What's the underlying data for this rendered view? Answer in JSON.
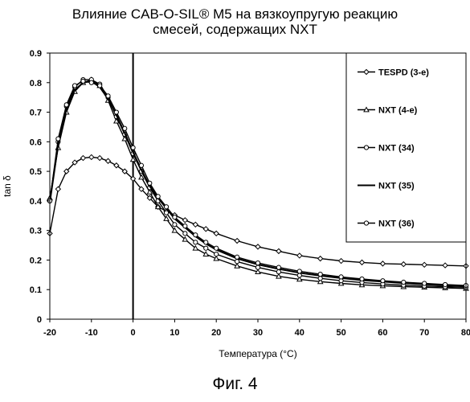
{
  "figure": {
    "title_line1": "Влияние CAB-O-SIL® M5 на вязкоупругую реакцию",
    "title_line2": "смесей, содержащих NXT",
    "caption": "Фиг. 4"
  },
  "chart_data": {
    "type": "line",
    "title": "Влияние CAB-O-SIL® M5 на вязкоупругую реакцию смесей, содержащих NXT",
    "xlabel": "Температура (°C)",
    "ylabel": "tan δ",
    "xlim": [
      -20,
      80
    ],
    "ylim": [
      0,
      0.9
    ],
    "x_ticks": [
      -20,
      -10,
      0,
      10,
      20,
      30,
      40,
      50,
      60,
      70,
      80
    ],
    "y_ticks": [
      0,
      0.1,
      0.2,
      0.3,
      0.4,
      0.5,
      0.6,
      0.7,
      0.8,
      0.9
    ],
    "x_tick_labels": [
      "-20",
      "-10",
      "0",
      "10",
      "20",
      "30",
      "40",
      "50",
      "60",
      "70",
      "80"
    ],
    "y_tick_labels": [
      "0",
      "0.1",
      "0.2",
      "0.3",
      "0.4",
      "0.5",
      "0.6",
      "0.7",
      "0.8",
      "0.9"
    ],
    "grid": false,
    "legend_position": "right",
    "vertical_line_x": 0,
    "series": [
      {
        "name": "TESPD (3-е)",
        "marker": "diamond",
        "x": [
          -20,
          -18,
          -16,
          -14,
          -12,
          -10,
          -8,
          -6,
          -4,
          -2,
          0,
          2,
          4,
          6,
          8,
          10,
          12.5,
          15,
          17.5,
          20,
          25,
          30,
          35,
          40,
          45,
          50,
          55,
          60,
          65,
          70,
          75,
          80
        ],
        "y": [
          0.29,
          0.44,
          0.5,
          0.53,
          0.545,
          0.548,
          0.545,
          0.535,
          0.52,
          0.5,
          0.475,
          0.44,
          0.41,
          0.38,
          0.365,
          0.352,
          0.335,
          0.32,
          0.305,
          0.29,
          0.265,
          0.245,
          0.23,
          0.215,
          0.205,
          0.197,
          0.192,
          0.188,
          0.186,
          0.184,
          0.182,
          0.18
        ]
      },
      {
        "name": "NXT (4-е)",
        "marker": "triangle",
        "x": [
          -20,
          -18,
          -16,
          -14,
          -12,
          -10,
          -8,
          -6,
          -4,
          -2,
          0,
          2,
          4,
          6,
          8,
          10,
          12.5,
          15,
          17.5,
          20,
          25,
          30,
          35,
          40,
          45,
          50,
          55,
          60,
          65,
          70,
          75,
          80
        ],
        "y": [
          0.41,
          0.58,
          0.7,
          0.77,
          0.8,
          0.81,
          0.79,
          0.74,
          0.67,
          0.61,
          0.54,
          0.48,
          0.43,
          0.38,
          0.34,
          0.3,
          0.27,
          0.24,
          0.22,
          0.205,
          0.18,
          0.16,
          0.145,
          0.135,
          0.127,
          0.121,
          0.116,
          0.113,
          0.11,
          0.108,
          0.106,
          0.104
        ]
      },
      {
        "name": "NXT (34)",
        "marker": "circle",
        "x": [
          -20,
          -18,
          -16,
          -14,
          -12,
          -10,
          -8,
          -6,
          -4,
          -2,
          0,
          2,
          4,
          6,
          8,
          10,
          12.5,
          15,
          17.5,
          20,
          25,
          30,
          35,
          40,
          45,
          50,
          55,
          60,
          65,
          70,
          75,
          80
        ],
        "y": [
          0.4,
          0.6,
          0.72,
          0.785,
          0.81,
          0.81,
          0.795,
          0.75,
          0.685,
          0.625,
          0.56,
          0.5,
          0.445,
          0.4,
          0.36,
          0.32,
          0.29,
          0.26,
          0.24,
          0.22,
          0.195,
          0.175,
          0.16,
          0.148,
          0.138,
          0.13,
          0.124,
          0.119,
          0.115,
          0.112,
          0.11,
          0.108
        ]
      },
      {
        "name": "NXT (35)",
        "marker": "none",
        "x": [
          -20,
          -18,
          -16,
          -14,
          -12,
          -10,
          -8,
          -6,
          -4,
          -2,
          0,
          2,
          4,
          6,
          8,
          10,
          12.5,
          15,
          17.5,
          20,
          25,
          30,
          35,
          40,
          45,
          50,
          55,
          60,
          65,
          70,
          75,
          80
        ],
        "y": [
          0.395,
          0.59,
          0.71,
          0.775,
          0.8,
          0.805,
          0.785,
          0.745,
          0.69,
          0.63,
          0.565,
          0.505,
          0.45,
          0.41,
          0.375,
          0.34,
          0.31,
          0.28,
          0.255,
          0.235,
          0.205,
          0.185,
          0.17,
          0.157,
          0.147,
          0.139,
          0.132,
          0.127,
          0.122,
          0.118,
          0.115,
          0.112
        ]
      },
      {
        "name": "NXT (36)",
        "marker": "circle",
        "x": [
          -20,
          -18,
          -16,
          -14,
          -12,
          -10,
          -8,
          -6,
          -4,
          -2,
          0,
          2,
          4,
          6,
          8,
          10,
          12.5,
          15,
          17.5,
          20,
          25,
          30,
          35,
          40,
          45,
          50,
          55,
          60,
          65,
          70,
          75,
          80
        ],
        "y": [
          0.4,
          0.61,
          0.725,
          0.79,
          0.805,
          0.8,
          0.79,
          0.755,
          0.7,
          0.645,
          0.58,
          0.52,
          0.46,
          0.415,
          0.38,
          0.345,
          0.315,
          0.285,
          0.26,
          0.24,
          0.21,
          0.19,
          0.175,
          0.162,
          0.152,
          0.143,
          0.136,
          0.13,
          0.125,
          0.121,
          0.117,
          0.114
        ]
      }
    ]
  }
}
